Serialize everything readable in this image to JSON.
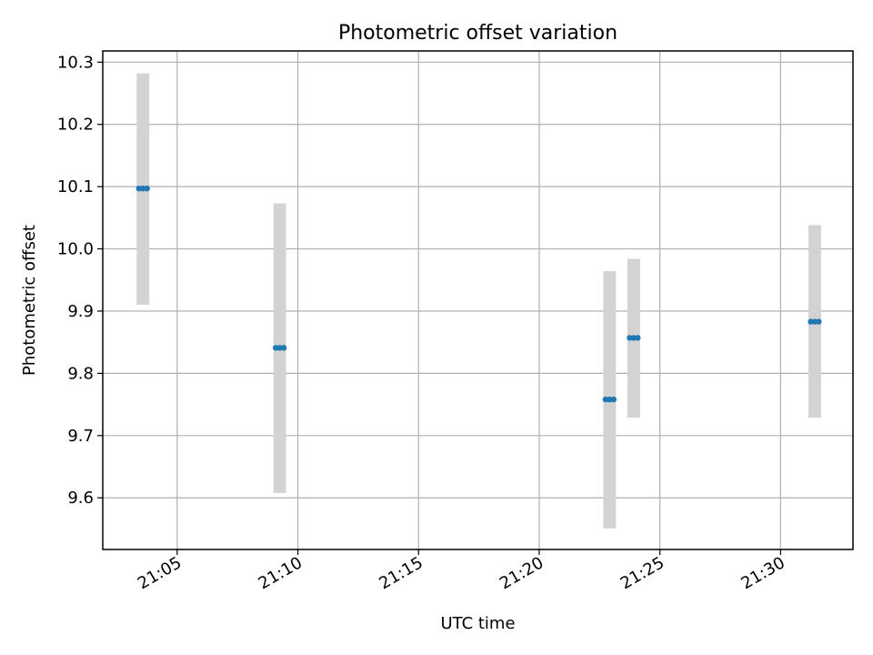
{
  "chart_data": {
    "type": "scatter",
    "title": "Photometric offset variation",
    "xlabel": "UTC time",
    "ylabel": "Photometric offset",
    "x_axis_type": "time",
    "xlim": [
      "21:01:55",
      "21:33:00"
    ],
    "ylim": [
      9.517,
      10.318
    ],
    "x_ticks": [
      "21:05",
      "21:10",
      "21:15",
      "21:20",
      "21:25",
      "21:30"
    ],
    "y_ticks": [
      "9.6",
      "9.7",
      "9.8",
      "9.9",
      "10.0",
      "10.1",
      "10.2",
      "10.3"
    ],
    "grid": true,
    "marker_color": "#1f77b4",
    "errorbar_color": "#d3d3d3",
    "groups": [
      {
        "x": [
          "21:03:25",
          "21:03:35",
          "21:03:45"
        ],
        "y": 10.097,
        "err_low": 9.91,
        "err_high": 10.282
      },
      {
        "x": [
          "21:09:05",
          "21:09:15",
          "21:09:25"
        ],
        "y": 9.841,
        "err_low": 9.608,
        "err_high": 10.073
      },
      {
        "x": [
          "21:22:45",
          "21:22:55",
          "21:23:05"
        ],
        "y": 9.758,
        "err_low": 9.551,
        "err_high": 9.964
      },
      {
        "x": [
          "21:23:45",
          "21:23:55",
          "21:24:05"
        ],
        "y": 9.857,
        "err_low": 9.729,
        "err_high": 9.984
      },
      {
        "x": [
          "21:31:15",
          "21:31:25",
          "21:31:35"
        ],
        "y": 9.883,
        "err_low": 9.729,
        "err_high": 10.038
      }
    ]
  }
}
